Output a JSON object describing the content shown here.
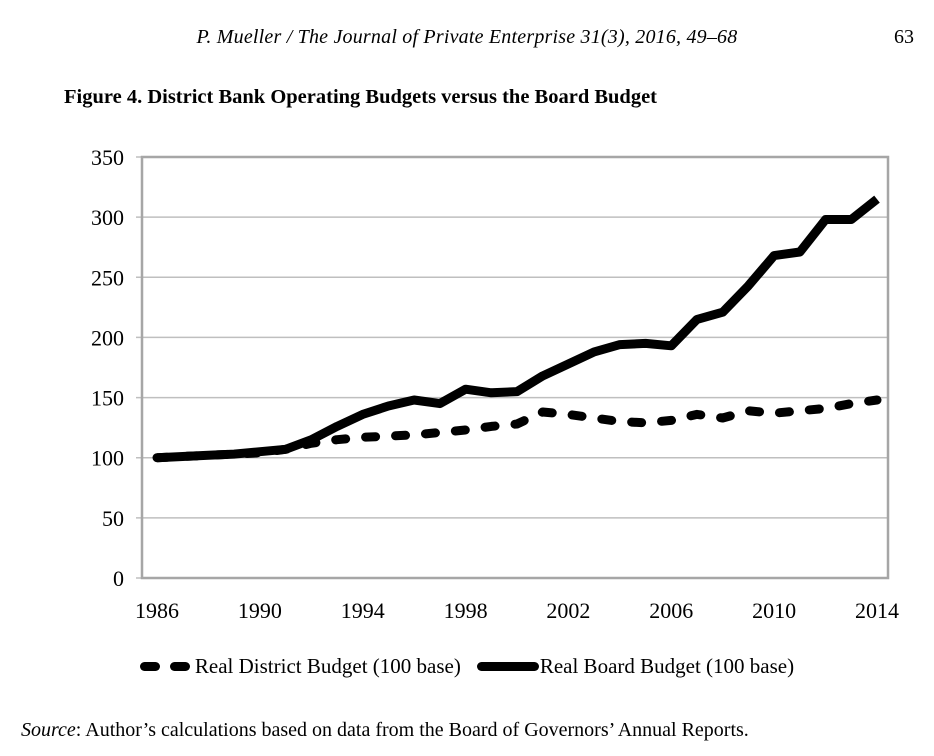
{
  "header": {
    "citation": "P. Mueller / The Journal of Private Enterprise 31(3), 2016, 49–68",
    "page_number": "63"
  },
  "figure": {
    "title": "Figure 4. District Bank Operating Budgets versus the Board Budget"
  },
  "legend": {
    "district_label": "Real District Budget (100 base)",
    "board_label": "Real Board Budget (100 base)"
  },
  "source": {
    "label": "Source",
    "text": ": Author’s calculations based on data from the Board of Governors’ Annual Reports."
  },
  "chart_data": {
    "type": "line",
    "title": "Figure 4. District Bank Operating Budgets versus the Board Budget",
    "xlabel": "",
    "ylabel": "",
    "ylim": [
      0,
      350
    ],
    "yticks": [
      0,
      50,
      100,
      150,
      200,
      250,
      300,
      350
    ],
    "xticks": [
      1986,
      1990,
      1994,
      1998,
      2002,
      2006,
      2010,
      2014
    ],
    "grid": "horizontal",
    "legend_position": "bottom",
    "x": [
      1986,
      1987,
      1988,
      1989,
      1990,
      1991,
      1992,
      1993,
      1994,
      1995,
      1996,
      1997,
      1998,
      1999,
      2000,
      2001,
      2002,
      2003,
      2004,
      2005,
      2006,
      2007,
      2008,
      2009,
      2010,
      2011,
      2012,
      2013,
      2014
    ],
    "series": [
      {
        "name": "Real District Budget (100 base)",
        "style": "dashed",
        "values": [
          100,
          101,
          102,
          103,
          104,
          107,
          112,
          115,
          117,
          118,
          119,
          121,
          123,
          126,
          128,
          138,
          136,
          133,
          130,
          129,
          131,
          136,
          133,
          139,
          137,
          139,
          141,
          145,
          148
        ]
      },
      {
        "name": "Real Board Budget (100 base)",
        "style": "solid",
        "values": [
          100,
          101,
          102,
          103,
          105,
          107,
          115,
          126,
          136,
          143,
          148,
          145,
          157,
          154,
          155,
          168,
          178,
          188,
          194,
          195,
          193,
          215,
          221,
          243,
          268,
          271,
          298,
          298,
          315
        ]
      }
    ],
    "colors": {
      "series": "#000000",
      "gridline": "#bfbfbf",
      "plot_border": "#a6a6a6",
      "text": "#000000"
    }
  }
}
